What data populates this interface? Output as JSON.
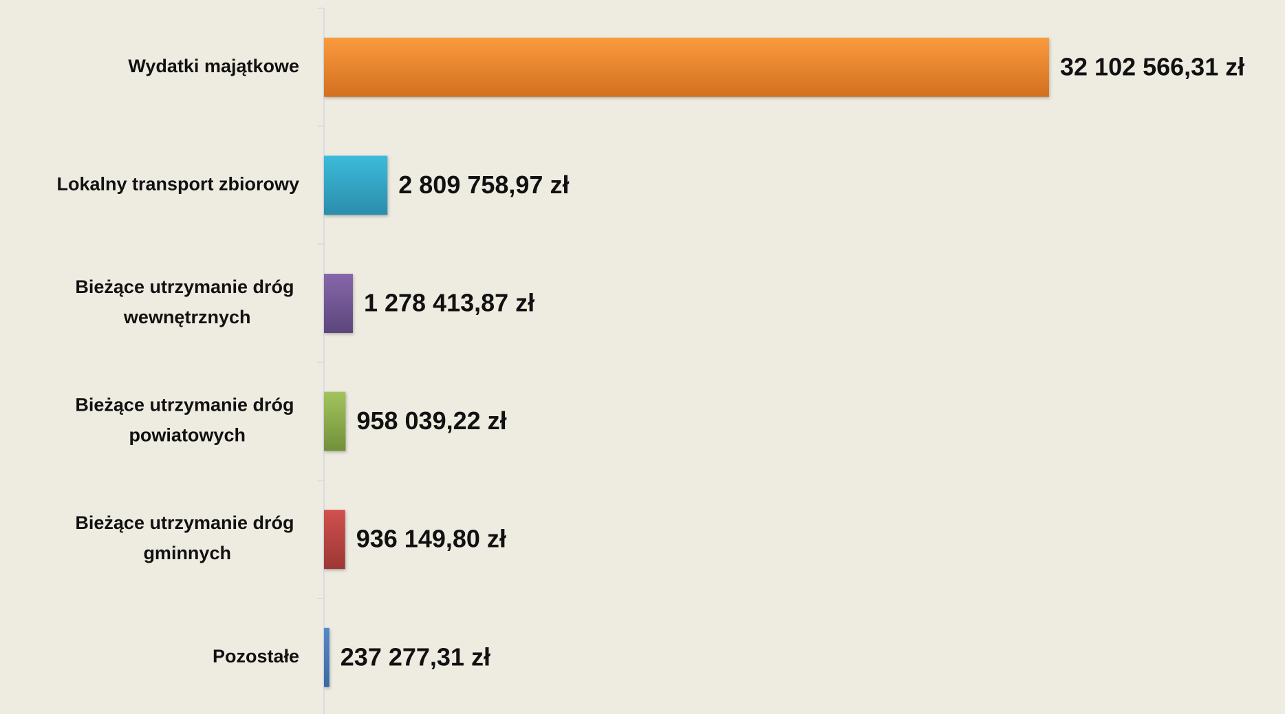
{
  "chart_data": {
    "type": "hbar",
    "categories": [
      "Wydatki majątkowe",
      "Lokalny transport zbiorowy",
      "Bieżące utrzymanie dróg wewnętrznych",
      "Bieżące utrzymanie dróg powiatowych",
      "Bieżące utrzymanie dróg gminnych",
      "Pozostałe"
    ],
    "values": [
      32102566.31,
      2809758.97,
      1278413.87,
      958039.22,
      936149.8,
      237277.31
    ],
    "value_labels": [
      "32 102 566,31 zł",
      "2 809 758,97 zł",
      "1 278 413,87 zł",
      "958 039,22 zł",
      "936 149,80 zł",
      "237 277,31 zł"
    ],
    "colors": [
      [
        "#fa9a3e",
        "#d2701f"
      ],
      [
        "#3dbadb",
        "#2a8eab"
      ],
      [
        "#8667aa",
        "#5b467b"
      ],
      [
        "#a2c45c",
        "#72903a"
      ],
      [
        "#d0504d",
        "#9c3735"
      ],
      [
        "#5588c8",
        "#3a68a4"
      ]
    ]
  }
}
